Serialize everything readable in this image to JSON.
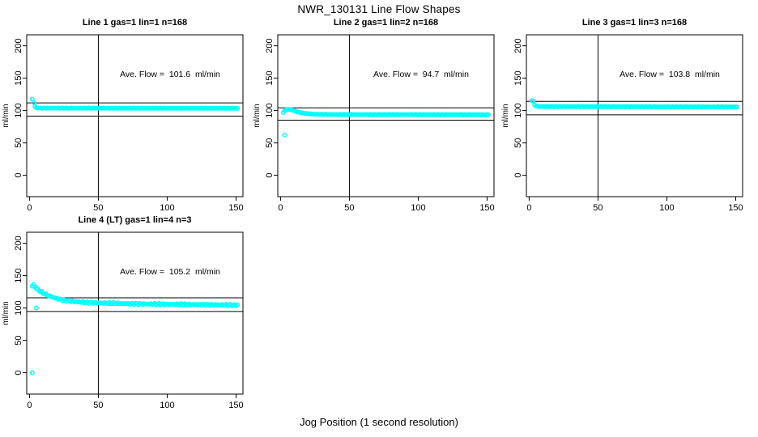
{
  "page": {
    "title": "NWR_130131  Line Flow Shapes",
    "footer_label": "Jog Position (1 second resolution)",
    "background": "#FFFFFF",
    "axis_color": "#000000"
  },
  "chart_data": {
    "type": "scatter",
    "title": "NWR_130131  Line Flow Shapes",
    "xlabel": "Jog Position (1 second resolution)",
    "ylabel": "ml/min",
    "xlim": [
      -2,
      155
    ],
    "ylim": [
      -33,
      217
    ],
    "xticks": [
      0,
      50,
      100,
      150
    ],
    "yticks": [
      0,
      50,
      100,
      150,
      200
    ],
    "grid": false,
    "legend": "none",
    "point_style": "open-circle",
    "point_color": "#00FFFF",
    "axis_color": "#000000",
    "vline_x": 50,
    "panels": [
      {
        "title": "Line 1 gas=1 lin=1 n=168",
        "n": 168,
        "ave_flow": 101.6,
        "annotation": "Ave. Flow =  101.6  ml/min",
        "hlines": [
          111.8,
          91.4
        ],
        "x_range": [
          2,
          151
        ],
        "noise": 0.35,
        "keypoints": [
          [
            2,
            117.5
          ],
          [
            3,
            112.5
          ],
          [
            4,
            106
          ],
          [
            5,
            104.3
          ],
          [
            7,
            103.8
          ],
          [
            151,
            103.5
          ]
        ],
        "outliers": []
      },
      {
        "title": "Line 2 gas=1 lin=2 n=168",
        "n": 168,
        "ave_flow": 94.7,
        "annotation": "Ave. Flow =  94.7  ml/min",
        "hlines": [
          104.2,
          85.2
        ],
        "x_range": [
          2,
          151
        ],
        "noise": 0.5,
        "keypoints": [
          [
            2,
            97
          ],
          [
            4,
            101.5
          ],
          [
            6,
            102
          ],
          [
            9,
            100.5
          ],
          [
            13,
            97.5
          ],
          [
            18,
            95.5
          ],
          [
            25,
            94.3
          ],
          [
            40,
            93.8
          ],
          [
            151,
            93.5
          ]
        ],
        "outliers": [
          [
            3,
            62
          ]
        ]
      },
      {
        "title": "Line 3 gas=1 lin=3 n=168",
        "n": 168,
        "ave_flow": 103.8,
        "annotation": "Ave. Flow =  103.8  ml/min",
        "hlines": [
          114.2,
          93.4
        ],
        "x_range": [
          2,
          151
        ],
        "noise": 0.5,
        "keypoints": [
          [
            2,
            115.5
          ],
          [
            3,
            114.5
          ],
          [
            4,
            109
          ],
          [
            5,
            107.2
          ],
          [
            7,
            106.2
          ],
          [
            151,
            105.6
          ]
        ],
        "outliers": []
      },
      {
        "title": "Line 4 (LT) gas=1 lin=4 n=3",
        "n": 3,
        "ave_flow": 105.2,
        "annotation": "Ave. Flow =  105.2  ml/min",
        "hlines": [
          115.7,
          94.7
        ],
        "x_range": [
          2,
          151
        ],
        "noise": 1.4,
        "keypoints": [
          [
            2,
            134
          ],
          [
            3,
            135.5
          ],
          [
            4,
            133
          ],
          [
            5,
            130.5
          ],
          [
            7,
            127
          ],
          [
            10,
            123
          ],
          [
            14,
            119
          ],
          [
            19,
            115
          ],
          [
            25,
            112
          ],
          [
            32,
            110
          ],
          [
            42,
            108.5
          ],
          [
            55,
            107.5
          ],
          [
            75,
            106.5
          ],
          [
            110,
            105.5
          ],
          [
            151,
            104.5
          ]
        ],
        "outliers": [
          [
            2,
            0
          ],
          [
            5,
            100
          ]
        ]
      }
    ]
  }
}
